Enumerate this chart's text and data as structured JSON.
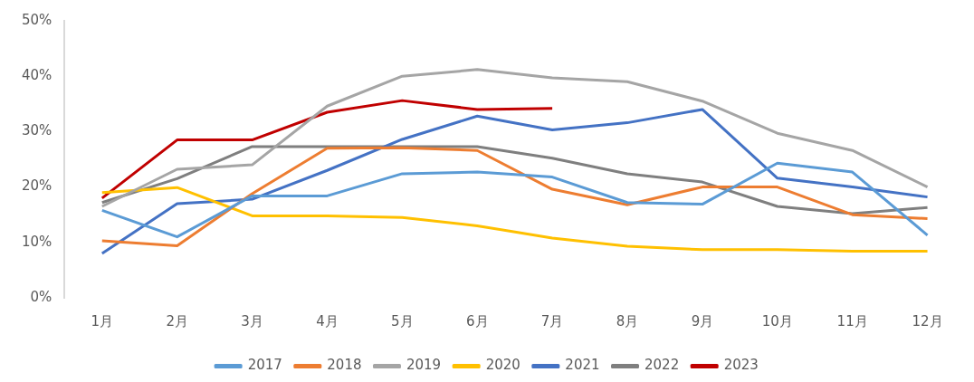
{
  "chart_data": {
    "type": "line",
    "categories": [
      "1月",
      "2月",
      "3月",
      "4月",
      "5月",
      "6月",
      "7月",
      "8月",
      "9月",
      "10月",
      "11月",
      "12月"
    ],
    "series": [
      {
        "name": "2017",
        "color": "#5b9bd5",
        "values": [
          15.8,
          11,
          18.4,
          18.4,
          22.4,
          22.7,
          21.8,
          17.2,
          16.9,
          24.3,
          22.7,
          11.3
        ]
      },
      {
        "name": "2018",
        "color": "#ed7d31",
        "values": [
          10.3,
          9.4,
          18.8,
          27,
          27.1,
          26.6,
          19.6,
          16.8,
          20,
          20,
          15,
          14.3
        ]
      },
      {
        "name": "2019",
        "color": "#a5a5a5",
        "values": [
          16.5,
          23.2,
          24,
          34.6,
          40,
          41.2,
          39.7,
          39,
          35.5,
          29.7,
          26.6,
          20
        ]
      },
      {
        "name": "2020",
        "color": "#ffc000",
        "values": [
          19,
          19.9,
          14.8,
          14.8,
          14.5,
          13,
          10.8,
          9.3,
          8.7,
          8.7,
          8.4,
          8.4
        ]
      },
      {
        "name": "2021",
        "color": "#4472c4",
        "values": [
          8,
          17,
          17.8,
          23,
          28.6,
          32.8,
          30.3,
          31.6,
          34,
          21.6,
          20,
          18.2
        ]
      },
      {
        "name": "2022",
        "color": "#7f7f7f",
        "values": [
          17.2,
          21.5,
          27.3,
          27.3,
          27.3,
          27.3,
          25.2,
          22.4,
          20.9,
          16.5,
          15.2,
          16.3
        ]
      },
      {
        "name": "2023",
        "color": "#c00000",
        "values": [
          18,
          28.5,
          28.5,
          33.5,
          35.6,
          34,
          34.2,
          null,
          null,
          null,
          null,
          null
        ]
      }
    ],
    "ylim": [
      0,
      50
    ],
    "yticks": [
      {
        "value": 0,
        "label": "0%"
      },
      {
        "value": 10,
        "label": "10%"
      },
      {
        "value": 20,
        "label": "20%"
      },
      {
        "value": 30,
        "label": "30%"
      },
      {
        "value": 40,
        "label": "40%"
      },
      {
        "value": 50,
        "label": "50%"
      }
    ],
    "grid": false,
    "legend": "bottom",
    "marker": "none",
    "line_style": "solid"
  }
}
